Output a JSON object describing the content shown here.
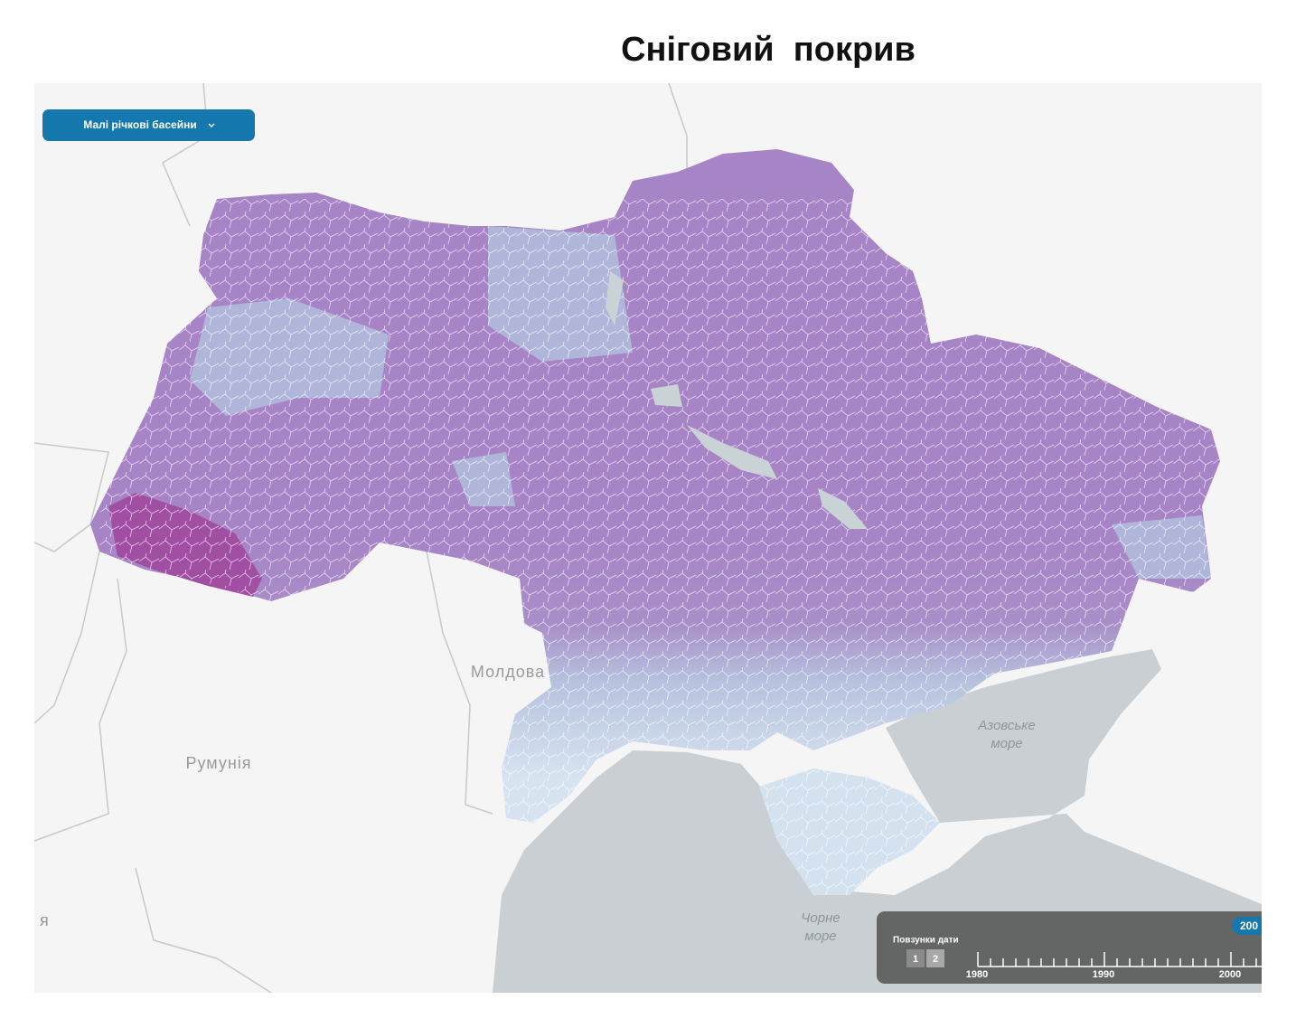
{
  "header": {
    "title": "Сніговий  покрив"
  },
  "controls": {
    "dropdown": "Малі річкові басейни"
  },
  "map": {
    "labels": {
      "moldova": "Молдова",
      "romania": "Румунія",
      "azov_sea": [
        "Азовське",
        "море"
      ],
      "black_sea": [
        "Чорне",
        "море"
      ],
      "edge_fragment": "я"
    }
  },
  "timeline": {
    "label": "Повзунки дати",
    "buttons": [
      "1",
      "2"
    ],
    "ticks": [
      "1980",
      "1990",
      "2000"
    ],
    "badge": "200"
  }
}
